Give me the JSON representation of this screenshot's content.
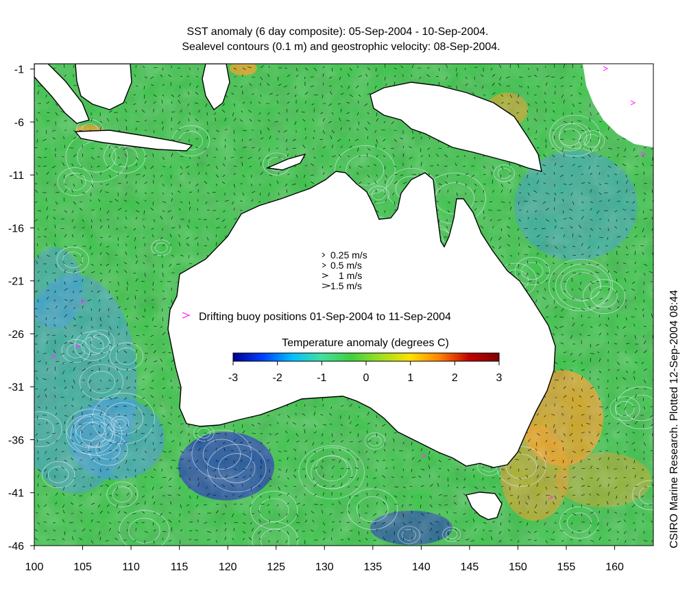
{
  "title": {
    "line1": "SST anomaly (6 day composite): 05-Sep-2004 - 10-Sep-2004.",
    "line2": "Sealevel contours (0.1 m) and geostrophic velocity: 08-Sep-2004."
  },
  "credit": "CSIRO Marine Research. Plotted 12-Sep-2004 08:44",
  "axes": {
    "lon_range": [
      100,
      164
    ],
    "lat_range": [
      -46,
      -0.5
    ],
    "x_ticks": [
      "100",
      "105",
      "110",
      "115",
      "120",
      "125",
      "130",
      "135",
      "140",
      "145",
      "150",
      "155",
      "160"
    ],
    "x_tick_values": [
      100,
      105,
      110,
      115,
      120,
      125,
      130,
      135,
      140,
      145,
      150,
      155,
      160
    ],
    "y_ticks": [
      "-1",
      "-6",
      "-11",
      "-16",
      "-21",
      "-26",
      "-31",
      "-36",
      "-41",
      "-46"
    ],
    "y_tick_values": [
      -1,
      -6,
      -11,
      -16,
      -21,
      -26,
      -31,
      -36,
      -41,
      -46
    ]
  },
  "velocity_legend": {
    "items": [
      {
        "label": "0.25 m/s",
        "value": 0.25
      },
      {
        "label": "0.5 m/s",
        "value": 0.5
      },
      {
        "label": "1 m/s",
        "value": 1
      },
      {
        "label": "1.5 m/s",
        "value": 1.5
      }
    ]
  },
  "buoy_legend": {
    "label": "Drifting buoy positions 01-Sep-2004 to 11-Sep-2004",
    "marker_color": "#ff33ff"
  },
  "colorbar": {
    "title": "Temperature anomaly (degrees C)",
    "range": [
      -3,
      3
    ],
    "ticks": [
      "-3",
      "-2",
      "-1",
      "0",
      "1",
      "2",
      "3"
    ],
    "tick_values": [
      -3,
      -2,
      -1,
      0,
      1,
      2,
      3
    ],
    "colors": [
      "#00008f",
      "#0040ff",
      "#00c0ff",
      "#40e0a0",
      "#40d040",
      "#a0e020",
      "#ffe000",
      "#ff8000",
      "#c00000",
      "#800000"
    ]
  },
  "colors": {
    "land": "#ffffff",
    "ocean_base": "#3cc44a",
    "warm_anomaly": "#f0a020",
    "cool_anomaly": "#3a9ae0",
    "strong_cool": "#1a2cc0",
    "contours": "#e8f0ff",
    "coastline": "#000000"
  }
}
